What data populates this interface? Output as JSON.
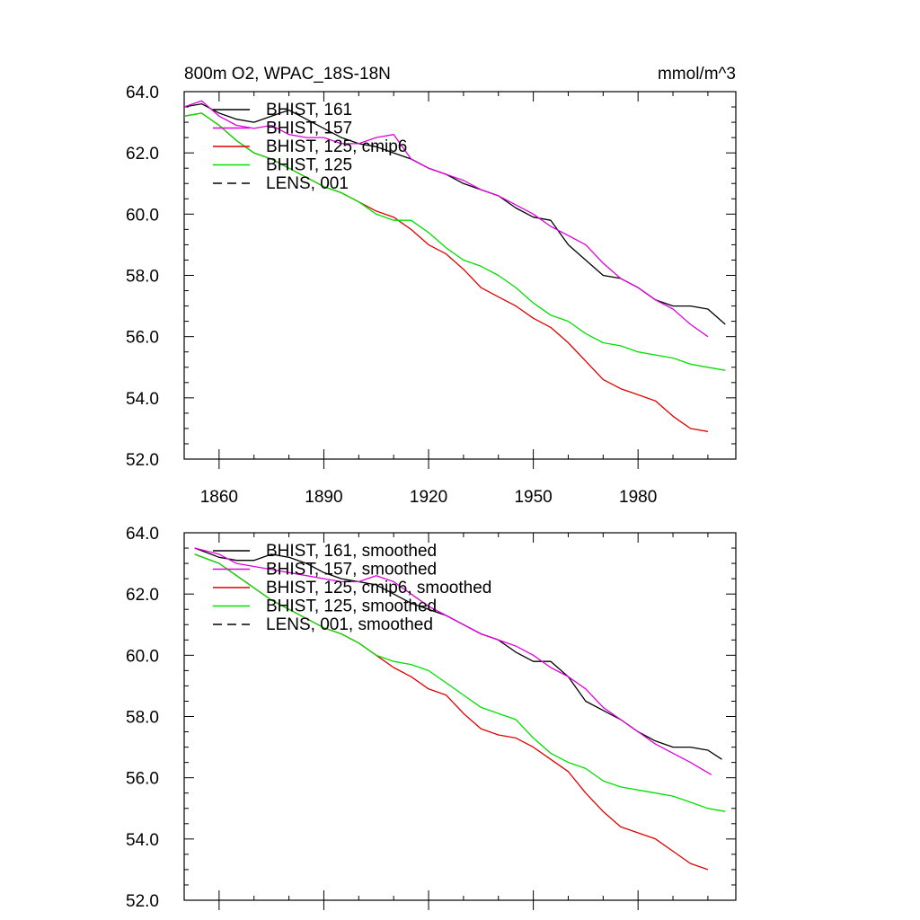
{
  "title_left": "800m O2, WPAC_18S-18N",
  "title_right": "mmol/m^3",
  "colors": {
    "BHIST_161": "#000000",
    "BHIST_157": "#e000e0",
    "BHIST_125_cmip6": "#e00000",
    "BHIST_125": "#00e000",
    "LENS_001": "#000000"
  },
  "chart_data": [
    {
      "type": "line",
      "title": "800m O2, WPAC_18S-18N",
      "unit_label": "mmol/m^3",
      "xlabel": "",
      "ylabel": "",
      "xlim": [
        1850,
        2008
      ],
      "ylim": [
        52.0,
        64.0
      ],
      "xticks": [
        1860,
        1890,
        1920,
        1950,
        1980
      ],
      "xtick_labels": [
        "1860",
        "1890",
        "1920",
        "1950",
        "1980"
      ],
      "yticks": [
        52.0,
        54.0,
        56.0,
        58.0,
        60.0,
        62.0,
        64.0
      ],
      "ytick_labels": [
        "52.0",
        "54.0",
        "56.0",
        "58.0",
        "60.0",
        "62.0",
        "64.0"
      ],
      "legend_position": "top-left",
      "legend": [
        "BHIST, 161",
        "BHIST, 157",
        "BHIST, 125, cmip6",
        "BHIST, 125",
        "LENS, 001"
      ],
      "series": [
        {
          "name": "BHIST, 161",
          "style": "solid",
          "x": [
            1850,
            1855,
            1860,
            1865,
            1870,
            1875,
            1880,
            1885,
            1890,
            1895,
            1900,
            1905,
            1910,
            1915,
            1920,
            1925,
            1930,
            1935,
            1940,
            1945,
            1950,
            1955,
            1960,
            1965,
            1970,
            1975,
            1980,
            1985,
            1990,
            1995,
            2000,
            2005
          ],
          "y": [
            63.5,
            63.6,
            63.3,
            63.1,
            63.0,
            63.2,
            63.4,
            63.1,
            62.8,
            62.5,
            62.3,
            62.2,
            62.0,
            61.8,
            61.5,
            61.3,
            61.0,
            60.8,
            60.6,
            60.2,
            59.9,
            59.8,
            59.0,
            58.5,
            58.0,
            57.9,
            57.6,
            57.2,
            57.0,
            57.0,
            56.9,
            56.4
          ]
        },
        {
          "name": "BHIST, 157",
          "style": "solid",
          "x": [
            1850,
            1855,
            1860,
            1865,
            1870,
            1875,
            1880,
            1885,
            1890,
            1895,
            1900,
            1905,
            1910,
            1915,
            1920,
            1925,
            1930,
            1935,
            1940,
            1945,
            1950,
            1955,
            1960,
            1965,
            1970,
            1975,
            1980,
            1985,
            1990,
            1995,
            2000
          ],
          "y": [
            63.5,
            63.7,
            63.2,
            62.9,
            62.8,
            62.9,
            62.6,
            62.5,
            62.5,
            62.3,
            62.3,
            62.5,
            62.6,
            61.8,
            61.5,
            61.3,
            61.1,
            60.8,
            60.6,
            60.3,
            60.0,
            59.6,
            59.3,
            59.0,
            58.4,
            57.9,
            57.6,
            57.2,
            56.9,
            56.4,
            56.0
          ]
        },
        {
          "name": "BHIST, 125, cmip6",
          "style": "solid",
          "x": [
            1850,
            1855,
            1860,
            1865,
            1870,
            1875,
            1880,
            1885,
            1890,
            1895,
            1900,
            1905,
            1910,
            1915,
            1920,
            1925,
            1930,
            1935,
            1940,
            1945,
            1950,
            1955,
            1960,
            1965,
            1970,
            1975,
            1980,
            1985,
            1990,
            1995,
            2000
          ],
          "y": [
            63.2,
            63.3,
            62.9,
            62.4,
            62.0,
            61.8,
            61.5,
            61.2,
            60.9,
            60.7,
            60.4,
            60.1,
            59.9,
            59.5,
            59.0,
            58.7,
            58.2,
            57.6,
            57.3,
            57.0,
            56.6,
            56.3,
            55.8,
            55.2,
            54.6,
            54.3,
            54.1,
            53.9,
            53.4,
            53.0,
            52.9
          ]
        },
        {
          "name": "BHIST, 125",
          "style": "solid",
          "x": [
            1850,
            1855,
            1860,
            1865,
            1870,
            1875,
            1880,
            1885,
            1890,
            1895,
            1900,
            1905,
            1910,
            1915,
            1920,
            1925,
            1930,
            1935,
            1940,
            1945,
            1950,
            1955,
            1960,
            1965,
            1970,
            1975,
            1980,
            1985,
            1990,
            1995,
            2000,
            2005
          ],
          "y": [
            63.2,
            63.3,
            62.9,
            62.4,
            62.0,
            61.8,
            61.5,
            61.2,
            60.9,
            60.7,
            60.4,
            60.0,
            59.8,
            59.8,
            59.4,
            58.9,
            58.5,
            58.3,
            58.0,
            57.6,
            57.1,
            56.7,
            56.5,
            56.1,
            55.8,
            55.7,
            55.5,
            55.4,
            55.3,
            55.1,
            55.0,
            54.9
          ]
        },
        {
          "name": "LENS, 001",
          "style": "dashed",
          "x": [],
          "y": []
        }
      ]
    },
    {
      "type": "line",
      "title": "",
      "xlabel": "",
      "ylabel": "",
      "xlim": [
        1850,
        2008
      ],
      "ylim": [
        52.0,
        64.0
      ],
      "xticks": [
        1860,
        1890,
        1920,
        1950,
        1980
      ],
      "xtick_labels": [],
      "yticks": [
        52.0,
        54.0,
        56.0,
        58.0,
        60.0,
        62.0,
        64.0
      ],
      "ytick_labels": [
        "52.0",
        "54.0",
        "56.0",
        "58.0",
        "60.0",
        "62.0",
        "64.0"
      ],
      "legend_position": "top-left",
      "legend": [
        "BHIST, 161, smoothed",
        "BHIST, 157, smoothed",
        "BHIST, 125, cmip6, smoothed",
        "BHIST, 125, smoothed",
        "LENS, 001, smoothed"
      ],
      "series": [
        {
          "name": "BHIST, 161, smoothed",
          "style": "solid",
          "x": [
            1853,
            1860,
            1865,
            1870,
            1875,
            1880,
            1885,
            1890,
            1895,
            1900,
            1905,
            1910,
            1915,
            1920,
            1925,
            1930,
            1935,
            1940,
            1945,
            1950,
            1955,
            1960,
            1965,
            1970,
            1975,
            1980,
            1985,
            1990,
            1995,
            2000,
            2004
          ],
          "y": [
            63.5,
            63.2,
            63.1,
            63.1,
            63.3,
            63.2,
            63.0,
            62.7,
            62.5,
            62.4,
            62.3,
            62.0,
            61.7,
            61.5,
            61.3,
            61.0,
            60.7,
            60.5,
            60.1,
            59.8,
            59.8,
            59.3,
            58.5,
            58.2,
            57.9,
            57.5,
            57.2,
            57.0,
            57.0,
            56.9,
            56.6
          ]
        },
        {
          "name": "BHIST, 157, smoothed",
          "style": "solid",
          "x": [
            1853,
            1860,
            1865,
            1870,
            1875,
            1880,
            1885,
            1890,
            1895,
            1900,
            1905,
            1910,
            1915,
            1920,
            1925,
            1930,
            1935,
            1940,
            1945,
            1950,
            1955,
            1960,
            1965,
            1970,
            1975,
            1980,
            1985,
            1990,
            1995,
            2001
          ],
          "y": [
            63.5,
            63.3,
            63.0,
            62.9,
            62.8,
            62.7,
            62.6,
            62.5,
            62.4,
            62.4,
            62.6,
            62.4,
            62.0,
            61.6,
            61.3,
            61.0,
            60.7,
            60.5,
            60.3,
            60.0,
            59.6,
            59.3,
            58.9,
            58.3,
            57.9,
            57.5,
            57.1,
            56.8,
            56.5,
            56.1
          ]
        },
        {
          "name": "BHIST, 125, cmip6, smoothed",
          "style": "solid",
          "x": [
            1853,
            1860,
            1865,
            1870,
            1875,
            1880,
            1885,
            1890,
            1895,
            1900,
            1905,
            1910,
            1915,
            1920,
            1925,
            1930,
            1935,
            1940,
            1945,
            1950,
            1955,
            1960,
            1965,
            1970,
            1975,
            1980,
            1985,
            1990,
            1995,
            2000
          ],
          "y": [
            63.3,
            63.0,
            62.6,
            62.2,
            61.8,
            61.5,
            61.2,
            60.9,
            60.7,
            60.4,
            60.0,
            59.6,
            59.3,
            58.9,
            58.7,
            58.1,
            57.6,
            57.4,
            57.3,
            57.0,
            56.6,
            56.2,
            55.5,
            54.9,
            54.4,
            54.2,
            54.0,
            53.6,
            53.2,
            53.0
          ]
        },
        {
          "name": "BHIST, 125, smoothed",
          "style": "solid",
          "x": [
            1853,
            1860,
            1865,
            1870,
            1875,
            1880,
            1885,
            1890,
            1895,
            1900,
            1905,
            1910,
            1915,
            1920,
            1925,
            1930,
            1935,
            1940,
            1945,
            1950,
            1955,
            1960,
            1965,
            1970,
            1975,
            1980,
            1985,
            1990,
            1995,
            2000,
            2005
          ],
          "y": [
            63.3,
            63.0,
            62.6,
            62.2,
            61.8,
            61.5,
            61.2,
            60.9,
            60.7,
            60.4,
            60.0,
            59.8,
            59.7,
            59.5,
            59.1,
            58.7,
            58.3,
            58.1,
            57.9,
            57.3,
            56.8,
            56.5,
            56.3,
            55.9,
            55.7,
            55.6,
            55.5,
            55.4,
            55.2,
            55.0,
            54.9
          ]
        },
        {
          "name": "LENS, 001, smoothed",
          "style": "dashed",
          "x": [],
          "y": []
        }
      ]
    }
  ]
}
